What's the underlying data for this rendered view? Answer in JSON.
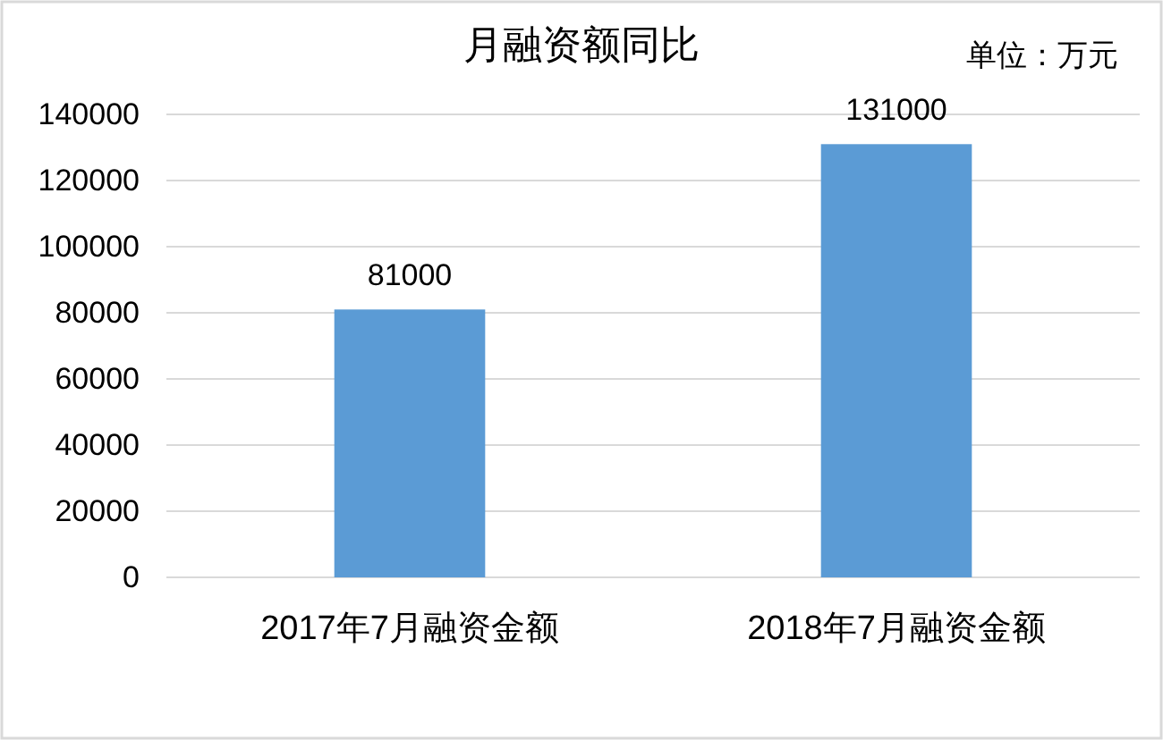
{
  "chart_data": {
    "type": "bar",
    "title": "月融资额同比",
    "annotations": [
      "单位：万元"
    ],
    "categories": [
      "2017年7月融资金额",
      "2018年7月融资金额"
    ],
    "values": [
      81000,
      131000
    ],
    "color": "#5b9bd5",
    "ylim": [
      0,
      140000
    ],
    "yticks": [
      0,
      20000,
      40000,
      60000,
      80000,
      100000,
      120000,
      140000
    ],
    "grid": "y",
    "data_labels": true
  }
}
